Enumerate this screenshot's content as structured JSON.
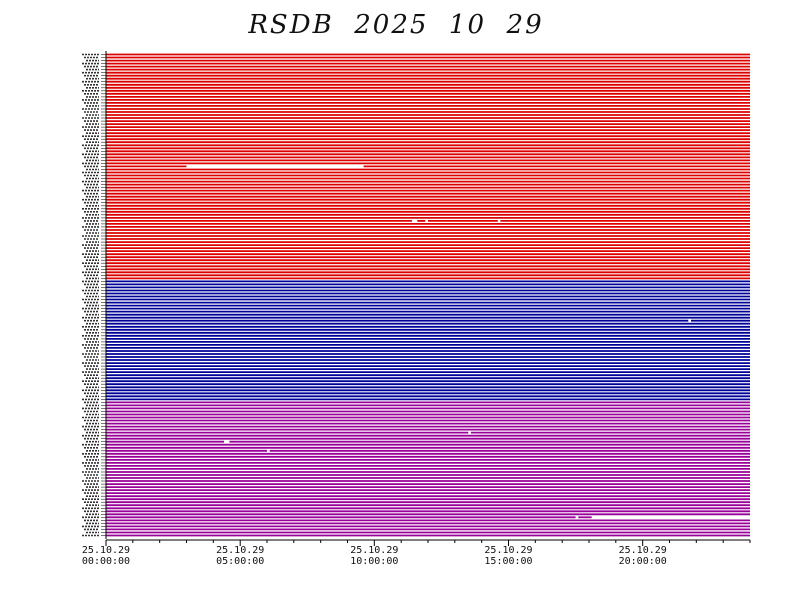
{
  "chart_data": {
    "type": "line",
    "title": "RSDB  2025  10  29",
    "x_start_hour": 0,
    "x_end_hour": 24,
    "x_ticks": [
      {
        "hour": 0,
        "date": "25.10.29",
        "time": "00:00:00"
      },
      {
        "hour": 5,
        "date": "25.10.29",
        "time": "05:00:00"
      },
      {
        "hour": 10,
        "date": "25.10.29",
        "time": "10:00:00"
      },
      {
        "hour": 15,
        "date": "25.10.29",
        "time": "15:00:00"
      },
      {
        "hour": 20,
        "date": "25.10.29",
        "time": "20:00:00"
      }
    ],
    "minor_tick_hours": 1,
    "groups": [
      {
        "color": "#dd0000",
        "count": 75
      },
      {
        "color": "#000099",
        "count": 40
      },
      {
        "color": "#990099",
        "count": 45
      }
    ],
    "gaps": [
      {
        "row": 37,
        "from": 3.0,
        "to": 9.6
      },
      {
        "row": 55,
        "from": 11.4,
        "to": 11.6
      },
      {
        "row": 55,
        "from": 11.9,
        "to": 12.0
      },
      {
        "row": 55,
        "from": 14.6,
        "to": 14.7
      },
      {
        "row": 88,
        "from": 21.7,
        "to": 21.8
      },
      {
        "row": 128,
        "from": 4.4,
        "to": 4.6
      },
      {
        "row": 125,
        "from": 13.5,
        "to": 13.6
      },
      {
        "row": 131,
        "from": 6.0,
        "to": 6.1
      },
      {
        "row": 153,
        "from": 17.5,
        "to": 17.6
      },
      {
        "row": 153,
        "from": 18.1,
        "to": 24.0
      }
    ]
  }
}
